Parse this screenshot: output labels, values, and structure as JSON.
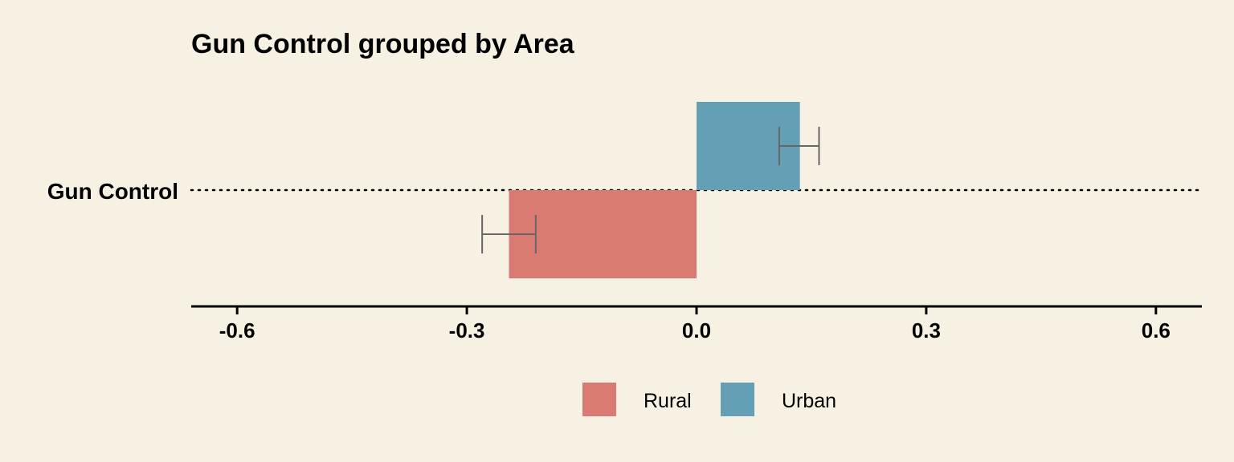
{
  "chart_data": {
    "type": "bar",
    "orientation": "horizontal",
    "title": "Gun Control grouped by Area",
    "categories": [
      "Gun Control"
    ],
    "series": [
      {
        "name": "Rural",
        "values": [
          -0.245
        ],
        "error_low": [
          -0.28
        ],
        "error_high": [
          -0.21
        ],
        "color": "#d97a73"
      },
      {
        "name": "Urban",
        "values": [
          0.135
        ],
        "error_low": [
          0.108
        ],
        "error_high": [
          0.16
        ],
        "color": "#649fb5"
      }
    ],
    "xlim": [
      -0.66,
      0.66
    ],
    "xticks": [
      -0.6,
      -0.3,
      0.0,
      0.3,
      0.6
    ],
    "xtick_labels": [
      "-0.6",
      "-0.3",
      "0.0",
      "0.3",
      "0.6"
    ],
    "xlabel": "",
    "ylabel": "",
    "grid": false,
    "reference_line": "dotted horizontal at category",
    "legend": {
      "placement": "bottom",
      "entries": [
        "Rural",
        "Urban"
      ]
    },
    "colors": {
      "background": "#f7f1e3",
      "error_bar": "#666666",
      "axis": "#000000"
    }
  }
}
